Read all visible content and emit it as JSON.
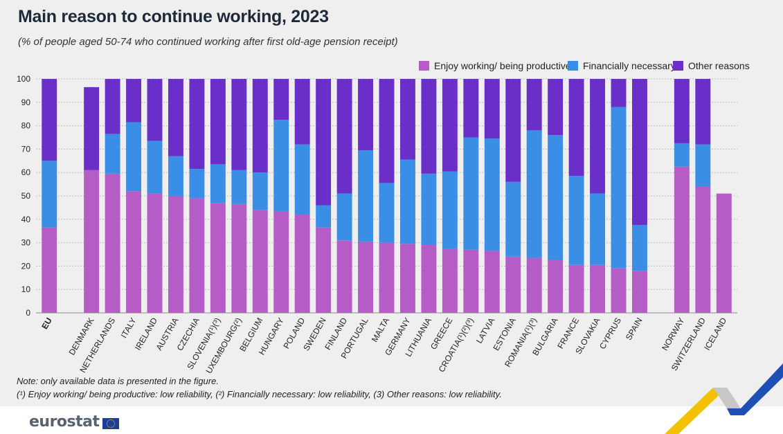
{
  "title": "Main reason to continue working, 2023",
  "subtitle": "(% of people aged 50-74 who continued working after first old-age pension receipt)",
  "note_line1": "Note: only available data is presented in the figure.",
  "note_line2": "(¹) Enjoy working/ being productive: low reliability, (²) Financially necessary: low reliability, (3) Other reasons: low reliability.",
  "logo_text": "eurostat",
  "colors": {
    "enjoy": "#b65cc6",
    "financial": "#3a8ee6",
    "other": "#6a2fc9",
    "grid": "#bdbdbd"
  },
  "chart_data": {
    "type": "bar",
    "stacked": true,
    "ylim": [
      0,
      100
    ],
    "yticks": [
      0,
      10,
      20,
      30,
      40,
      50,
      60,
      70,
      80,
      90,
      100
    ],
    "grid": true,
    "legend_position": "top-right",
    "categories": [
      "EU",
      "DENMARK",
      "NETHERLANDS",
      "ITALY",
      "IRELAND",
      "AUSTRIA",
      "CZECHIA",
      "SLOVENIA(¹)(³)",
      "LUXEMBOURG(²)",
      "BELGIUM",
      "HUNGARY",
      "POLAND",
      "SWEDEN",
      "FINLAND",
      "PORTUGAL",
      "MALTA",
      "GERMANY",
      "LITHUANIA",
      "GREECE",
      "CROATIA(¹)(²)(³)",
      "LATVIA",
      "ESTONIA",
      "ROMANIA(¹)(³)",
      "BULGARIA",
      "FRANCE",
      "SLOVAKIA",
      "CYPRUS",
      "SPAIN",
      "NORWAY",
      "SWITZERLAND",
      "ICELAND"
    ],
    "groups": [
      0,
      1,
      1,
      1,
      1,
      1,
      1,
      1,
      1,
      1,
      1,
      1,
      1,
      1,
      1,
      1,
      1,
      1,
      1,
      1,
      1,
      1,
      1,
      1,
      1,
      1,
      1,
      1,
      2,
      2,
      2
    ],
    "series": [
      {
        "name": "Enjoy working/ being productive",
        "values": [
          36.5,
          61,
          59.5,
          52,
          51,
          50,
          49,
          47,
          46.5,
          44,
          43.5,
          42,
          36.5,
          31,
          30.5,
          30,
          29.5,
          29,
          27.5,
          27,
          26.5,
          24,
          23.5,
          22.5,
          20.5,
          20.5,
          19,
          18,
          62.5,
          54,
          51
        ]
      },
      {
        "name": "Financially necessary",
        "values": [
          28.5,
          0,
          17,
          29.5,
          22.5,
          17,
          12.5,
          16.5,
          14.5,
          16,
          39,
          30,
          9.5,
          20,
          39,
          25.5,
          36,
          30.5,
          33,
          48,
          48,
          32,
          54.5,
          53.5,
          38,
          30.5,
          69,
          19.5,
          10,
          18,
          0
        ]
      },
      {
        "name": "Other reasons",
        "values": [
          35,
          35.5,
          23.5,
          18.5,
          26.5,
          33,
          38.5,
          36.5,
          39,
          40,
          17.5,
          28,
          54,
          49,
          30.5,
          44.5,
          34.5,
          40.5,
          39.5,
          25,
          25.5,
          44,
          22,
          24,
          41.5,
          49,
          12,
          62.5,
          27.5,
          28,
          0
        ]
      }
    ]
  }
}
